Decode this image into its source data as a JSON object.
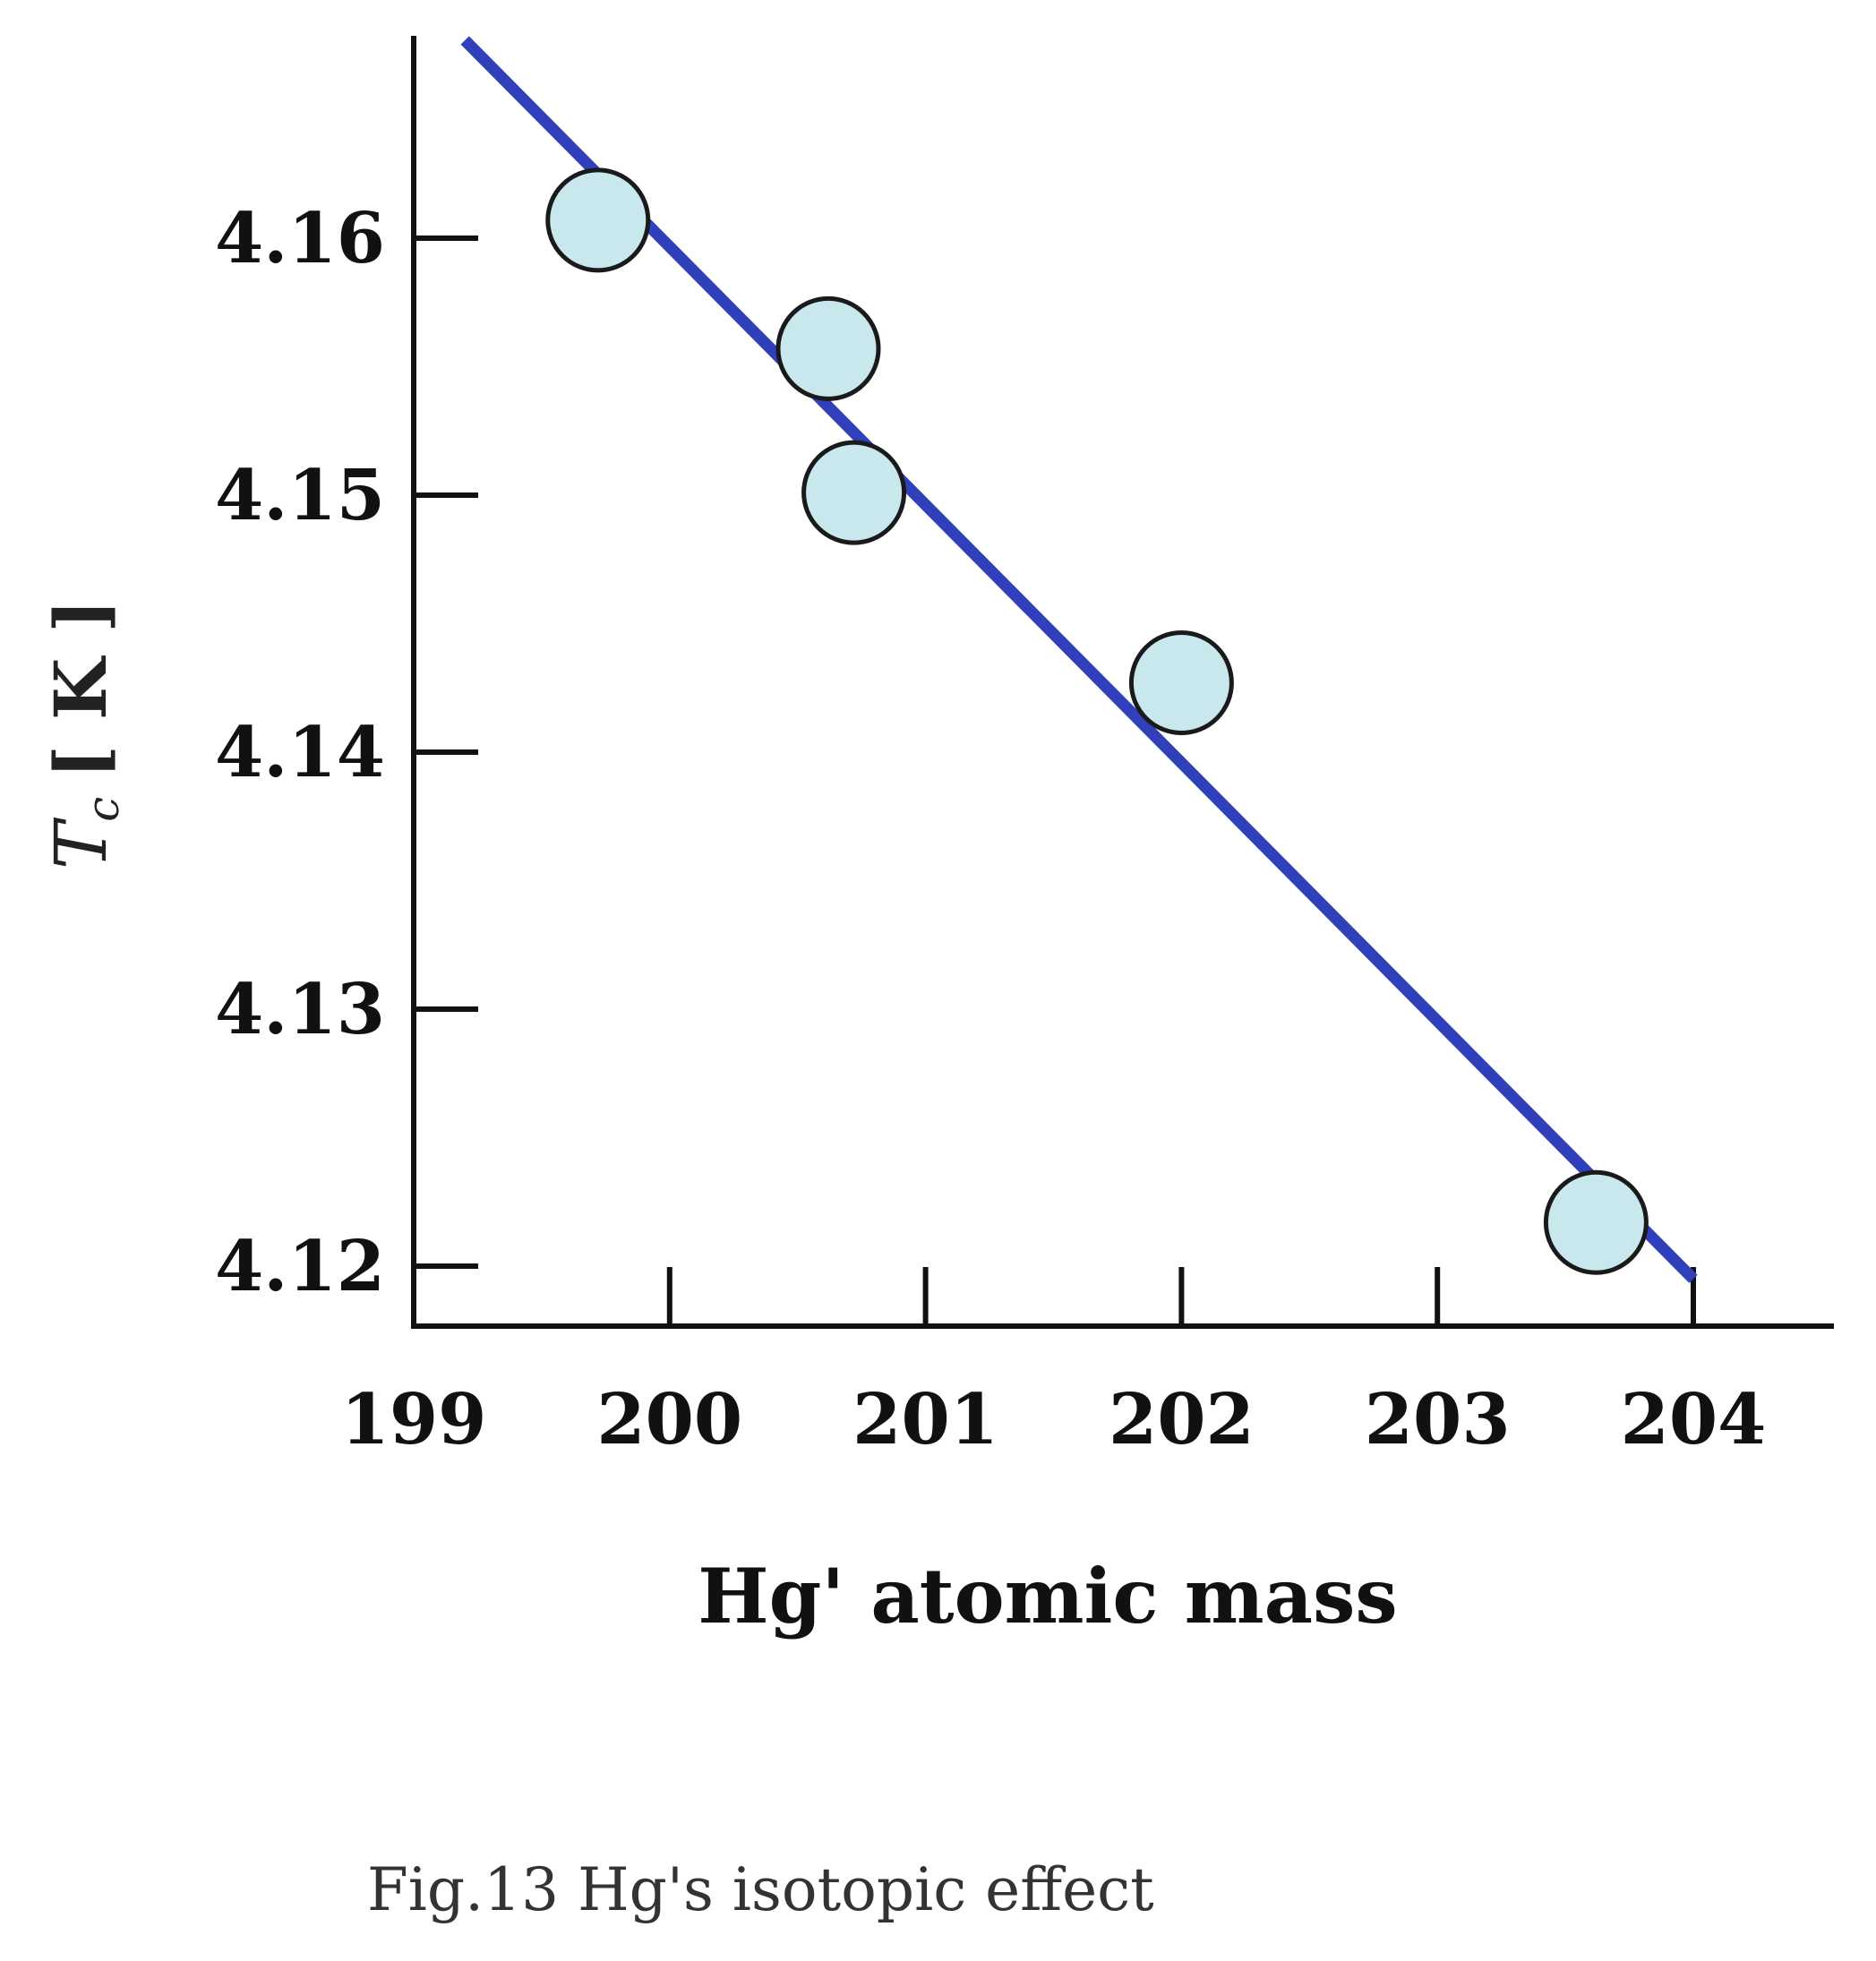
{
  "chart_data": {
    "type": "scatter",
    "title": "",
    "xlabel": "Hg' atomic mass",
    "ylabel": "Tc [K]",
    "ylabel_main": "T",
    "ylabel_sub": "c",
    "ylabel_unit": "[ K ]",
    "xlim": [
      199,
      204.55
    ],
    "ylim": [
      4.1177,
      4.1677
    ],
    "x_ticks": [
      199,
      200,
      201,
      202,
      203,
      204
    ],
    "y_ticks": [
      4.12,
      4.13,
      4.14,
      4.15,
      4.16
    ],
    "x_tick_labels": [
      "199",
      "200",
      "201",
      "202",
      "203",
      "204"
    ],
    "y_tick_labels": [
      "4.12",
      "4.13",
      "4.14",
      "4.15",
      "4.16"
    ],
    "grid": false,
    "legend": "none",
    "series": [
      {
        "type": "scatter",
        "x": [
          199.72,
          200.62,
          200.72,
          202.0,
          203.62
        ],
        "y": [
          4.1607,
          4.1557,
          4.1501,
          4.1427,
          4.1217
        ]
      },
      {
        "type": "line",
        "x": [
          199.2,
          204.0
        ],
        "y": [
          4.1677,
          4.1195
        ]
      }
    ],
    "colors": {
      "line": "#3040bb",
      "marker_fill": "#c9e8ee",
      "marker_edge": "#1a1a1a",
      "axis": "#111111"
    }
  },
  "caption": "Fig.13 Hg's isotopic effect"
}
